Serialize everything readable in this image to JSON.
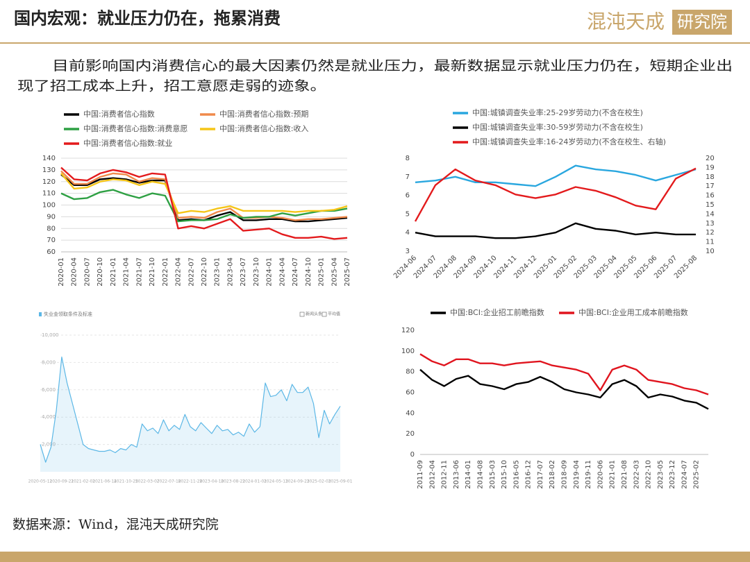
{
  "header": {
    "title": "国内宏观：就业压力仍在，拖累消费",
    "logo": "混沌天成",
    "logo_box": "研究院"
  },
  "paragraph": [
    "目前影响国内消费信心的最大因素仍然是就业压力，最新数据显示就业压力仍在，短期企业出",
    "现了招工成本上升，招工意愿走弱的迹象。"
  ],
  "source": "数据来源：Wind，混沌天成研究院",
  "chart_data": [
    {
      "type": "line",
      "categories": [
        "2020-01",
        "2020-04",
        "2020-07",
        "2020-10",
        "2021-01",
        "2021-04",
        "2021-07",
        "2021-10",
        "2022-01",
        "2022-04",
        "2022-07",
        "2022-10",
        "2023-01",
        "2023-04",
        "2023-07",
        "2023-10",
        "2024-01",
        "2024-04",
        "2024-07",
        "2024-10",
        "2025-01",
        "2025-04",
        "2025-07"
      ],
      "ylim": [
        60,
        140
      ],
      "yticks": [
        60,
        70,
        80,
        90,
        100,
        110,
        120,
        130,
        140
      ],
      "grid": true,
      "series": [
        {
          "name": "中国:消费者信心指数",
          "color": "#000000",
          "values": [
            126,
            117,
            117,
            122,
            123,
            122,
            119,
            121,
            121,
            87,
            88,
            87,
            91,
            94,
            87,
            87,
            88,
            88,
            86,
            86,
            87,
            88,
            89
          ]
        },
        {
          "name": "中国:消费者信心指数:预期",
          "color": "#f08a4b",
          "values": [
            129,
            118,
            118,
            124,
            127,
            126,
            120,
            123,
            122,
            89,
            90,
            89,
            94,
            97,
            89,
            89,
            90,
            89,
            87,
            88,
            88,
            89,
            90
          ]
        },
        {
          "name": "中国:消费者信心指数:消费意愿",
          "color": "#2ea043",
          "values": [
            110,
            105,
            106,
            111,
            113,
            109,
            106,
            110,
            108,
            86,
            87,
            87,
            88,
            92,
            89,
            90,
            90,
            93,
            91,
            93,
            95,
            95,
            97
          ]
        },
        {
          "name": "中国:消费者信心指数:收入",
          "color": "#f5c518",
          "values": [
            127,
            114,
            115,
            120,
            122,
            121,
            117,
            120,
            118,
            93,
            95,
            94,
            97,
            99,
            95,
            95,
            95,
            95,
            94,
            95,
            95,
            96,
            99
          ]
        },
        {
          "name": "中国:消费者信心指数:就业",
          "color": "#e31a1c",
          "values": [
            132,
            122,
            121,
            127,
            130,
            128,
            124,
            127,
            126,
            80,
            82,
            80,
            84,
            88,
            78,
            79,
            80,
            75,
            72,
            72,
            73,
            71,
            72
          ]
        }
      ]
    },
    {
      "type": "line",
      "categories": [
        "2024-06",
        "2024-07",
        "2024-08",
        "2024-09",
        "2024-10",
        "2024-11",
        "2024-12",
        "2025-01",
        "2025-02",
        "2025-03",
        "2025-04",
        "2025-05",
        "2025-06",
        "2025-07",
        "2025-08"
      ],
      "ylim": [
        3,
        8
      ],
      "yticks": [
        3,
        4,
        5,
        6,
        7,
        8
      ],
      "y2lim": [
        10,
        20
      ],
      "y2ticks": [
        10,
        11,
        12,
        13,
        14,
        15,
        16,
        17,
        18,
        19,
        20
      ],
      "series": [
        {
          "name": "中国:城镇调查失业率:25-29岁劳动力(不含在校生)",
          "color": "#2aa7df",
          "values": [
            6.7,
            6.8,
            7.0,
            6.7,
            6.7,
            6.6,
            6.5,
            7.0,
            7.6,
            7.4,
            7.3,
            7.1,
            6.8,
            7.1,
            7.4
          ]
        },
        {
          "name": "中国:城镇调查失业率:30-59岁劳动力(不含在校生)",
          "color": "#000000",
          "values": [
            4.0,
            3.8,
            3.8,
            3.8,
            3.7,
            3.7,
            3.8,
            4.0,
            4.5,
            4.2,
            4.1,
            3.9,
            4.0,
            3.9,
            3.9
          ]
        },
        {
          "name": "中国:城镇调查失业率:16-24岁劳动力(不含在校生、右轴)",
          "color": "#e31a1c",
          "axis": "y2",
          "values": [
            13.2,
            17.1,
            18.8,
            17.6,
            17.1,
            16.1,
            15.7,
            16.1,
            16.9,
            16.5,
            15.8,
            14.9,
            14.5,
            17.8,
            18.9
          ]
        }
      ]
    },
    {
      "type": "area",
      "title": "失业金领取条件及标准",
      "legend_items": [
        "新闻头条",
        "平均值"
      ],
      "categories": [
        "2020-05-11",
        null,
        null,
        null,
        "2020-09-21",
        null,
        null,
        null,
        "2021-02-01",
        null,
        null,
        null,
        "2021-06-14",
        null,
        null,
        null,
        "2021-10-25",
        null,
        null,
        null,
        "2022-03-07",
        null,
        null,
        null,
        "2022-07-18",
        null,
        null,
        null,
        "2022-11-28",
        null,
        null,
        null,
        "2023-04-10",
        null,
        null,
        null,
        "2023-08-21",
        null,
        null,
        null,
        "2024-01-01",
        null,
        null,
        null,
        "2024-05-13",
        null,
        null,
        null,
        "2024-09-23",
        null,
        null,
        null,
        "2025-02-03",
        null,
        null,
        null,
        "2025-09-01"
      ],
      "ylim": [
        0,
        10000
      ],
      "yticks": [
        {
          "value": 2000,
          "label": "2,000"
        },
        {
          "value": 4000,
          "label": "4,000"
        },
        {
          "value": 6000,
          "label": "6,000"
        },
        {
          "value": 8000,
          "label": "8,000"
        },
        {
          "value": 10000,
          "label": "10,000"
        }
      ],
      "grid": true,
      "series": [
        {
          "color": "#5bb7e6",
          "values": [
            2000,
            700,
            1800,
            4500,
            8400,
            6500,
            5000,
            3500,
            2000,
            1700,
            1600,
            1500,
            1500,
            1600,
            1400,
            1700,
            1600,
            2000,
            1800,
            3500,
            3000,
            3200,
            2800,
            3800,
            3000,
            3400,
            3100,
            4200,
            3300,
            3000,
            3600,
            3200,
            2800,
            3400,
            3000,
            3100,
            2700,
            2900,
            2600,
            3500,
            2900,
            3300,
            6500,
            5500,
            5600,
            6000,
            5200,
            6400,
            5800,
            5800,
            6200,
            5000,
            2500,
            4500,
            3500,
            4200,
            4800
          ]
        }
      ]
    },
    {
      "type": "line",
      "categories": [
        "2011-09",
        "2012-04",
        "2012-11",
        "2013-06",
        "2014-01",
        "2014-08",
        "2015-03",
        "2015-10",
        "2016-05",
        "2016-12",
        "2017-07",
        "2018-02",
        "2018-09",
        "2019-04",
        "2019-11",
        "2020-06",
        "2021-01",
        "2021-08",
        "2022-03",
        "2022-10",
        "2023-05",
        "2023-12",
        "2024-07",
        "2025-02",
        null
      ],
      "ylim": [
        0,
        120
      ],
      "yticks": [
        0,
        20,
        40,
        60,
        80,
        100,
        120
      ],
      "series": [
        {
          "name": "中国:BCI:企业招工前瞻指数",
          "color": "#000000",
          "values": [
            82,
            72,
            66,
            73,
            76,
            68,
            66,
            63,
            68,
            70,
            75,
            70,
            63,
            60,
            58,
            55,
            68,
            72,
            66,
            55,
            58,
            56,
            52,
            50,
            44
          ]
        },
        {
          "name": "中国:BCI:企业用工成本前瞻指数",
          "color": "#e0141e",
          "values": [
            97,
            90,
            86,
            92,
            92,
            88,
            88,
            86,
            88,
            89,
            90,
            86,
            84,
            82,
            78,
            62,
            82,
            86,
            82,
            72,
            70,
            68,
            64,
            62,
            58
          ]
        }
      ]
    }
  ]
}
